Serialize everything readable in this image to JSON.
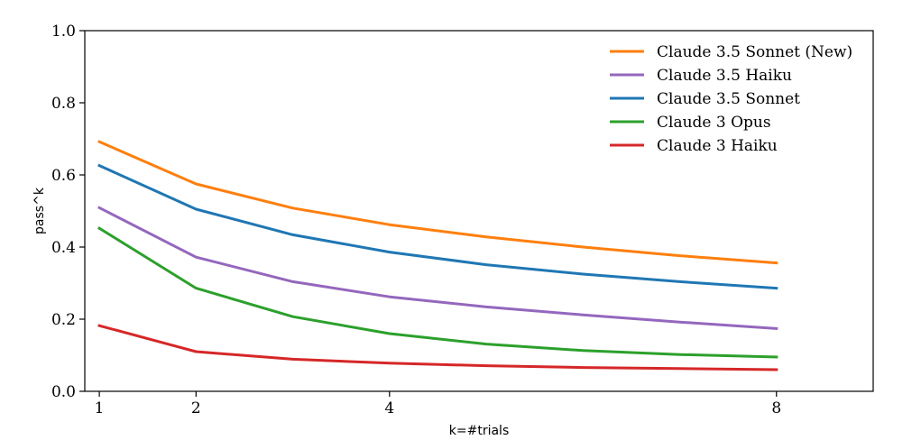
{
  "chart_data": {
    "type": "line",
    "title": "",
    "xlabel": "k=#trials",
    "ylabel": "pass^k",
    "x": [
      1,
      2,
      3,
      4,
      5,
      6,
      7,
      8
    ],
    "xticks": [
      1,
      2,
      4,
      8
    ],
    "yticks": [
      0.0,
      0.2,
      0.4,
      0.6,
      0.8,
      1.0
    ],
    "ylim": [
      0.0,
      1.0
    ],
    "xlim": [
      0.85,
      9.0
    ],
    "grid": false,
    "legend_position": "top-right",
    "series": [
      {
        "name": "Claude 3.5 Sonnet (New)",
        "color": "#ff7f0e",
        "values": [
          0.692,
          0.575,
          0.508,
          0.462,
          0.428,
          0.4,
          0.376,
          0.356
        ]
      },
      {
        "name": "Claude 3.5 Haiku",
        "color": "#9467bd",
        "values": [
          0.509,
          0.372,
          0.304,
          0.262,
          0.234,
          0.212,
          0.192,
          0.174
        ]
      },
      {
        "name": "Claude 3.5 Sonnet",
        "color": "#1f77b4",
        "values": [
          0.626,
          0.505,
          0.434,
          0.386,
          0.351,
          0.325,
          0.304,
          0.286
        ]
      },
      {
        "name": "Claude 3 Opus",
        "color": "#2ca02c",
        "values": [
          0.452,
          0.286,
          0.207,
          0.16,
          0.131,
          0.113,
          0.102,
          0.095
        ]
      },
      {
        "name": "Claude 3 Haiku",
        "color": "#d62728",
        "values": [
          0.182,
          0.11,
          0.089,
          0.078,
          0.071,
          0.066,
          0.063,
          0.06
        ]
      }
    ]
  }
}
